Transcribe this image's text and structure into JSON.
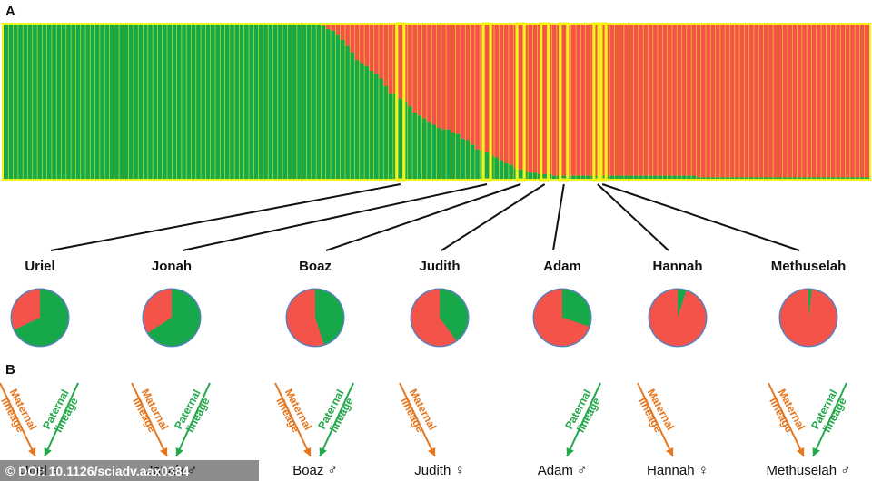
{
  "panel_a_label": "A",
  "panel_b_label": "B",
  "watermark": "© DOI: 10.1126/sciadv.aax0384",
  "colors": {
    "green": "#17a84a",
    "red": "#f4534a",
    "highlight": "#f2f21a",
    "orange": "#e6761e",
    "paternal": "#22a84a"
  },
  "lineage_text": {
    "maternal_1": "Maternal",
    "maternal_2": "lineage",
    "paternal_1": "Paternal",
    "paternal_2": "lineage"
  },
  "chart_data": {
    "type": "bar",
    "stacked": true,
    "ylim": [
      0,
      1
    ],
    "series_colors": [
      "green",
      "red"
    ],
    "green_fraction": [
      1,
      1,
      1,
      1,
      1,
      1,
      1,
      1,
      1,
      1,
      1,
      1,
      1,
      1,
      1,
      1,
      1,
      1,
      1,
      1,
      1,
      1,
      1,
      1,
      1,
      1,
      1,
      1,
      1,
      1,
      1,
      1,
      1,
      1,
      1,
      1,
      1,
      1,
      1,
      1,
      1,
      1,
      1,
      1,
      1,
      1,
      1,
      1,
      1,
      1,
      1,
      1,
      1,
      1,
      1,
      1,
      1,
      1,
      1,
      1,
      1,
      1,
      1,
      1,
      1,
      1,
      0.99,
      0.97,
      0.96,
      0.93,
      0.9,
      0.86,
      0.82,
      0.77,
      0.75,
      0.73,
      0.7,
      0.68,
      0.65,
      0.6,
      0.55,
      0.55,
      0.52,
      0.5,
      0.47,
      0.43,
      0.41,
      0.39,
      0.37,
      0.35,
      0.33,
      0.32,
      0.32,
      0.3,
      0.29,
      0.26,
      0.25,
      0.22,
      0.19,
      0.18,
      0.17,
      0.15,
      0.14,
      0.12,
      0.1,
      0.09,
      0.07,
      0.06,
      0.05,
      0.04,
      0.04,
      0.03,
      0.03,
      0.03,
      0.02,
      0.02,
      0.02,
      0.02,
      0.02,
      0.02,
      0.02,
      0.02,
      0.02,
      0.02,
      0.02,
      0.02,
      0.02,
      0.02,
      0.02,
      0.02,
      0.02,
      0.02,
      0.02,
      0.02,
      0.02,
      0.02,
      0.02,
      0.02,
      0.02,
      0.02,
      0.02,
      0.02,
      0.02,
      0.02,
      0.01,
      0.01,
      0.01,
      0.01,
      0.01,
      0.01,
      0.01,
      0.01,
      0.01,
      0.01,
      0.01,
      0.01,
      0.01,
      0.01,
      0.01,
      0.01,
      0.01,
      0.01,
      0.01,
      0.01,
      0.01,
      0.01,
      0.01,
      0.01,
      0.01,
      0.01,
      0.01,
      0.01,
      0.01,
      0.01,
      0.01,
      0.01,
      0.01,
      0.01,
      0.01,
      0.01
    ],
    "highlighted_bars": [
      82,
      100,
      107,
      112,
      116,
      123,
      124
    ],
    "individuals": [
      {
        "name": "Uriel",
        "sex": "♂",
        "green": 0.68,
        "red": 0.32,
        "maternal": true,
        "paternal": true
      },
      {
        "name": "Jonah",
        "sex": "♂",
        "green": 0.66,
        "red": 0.34,
        "maternal": true,
        "paternal": true
      },
      {
        "name": "Boaz",
        "sex": "♂",
        "green": 0.45,
        "red": 0.55,
        "maternal": true,
        "paternal": true
      },
      {
        "name": "Judith",
        "sex": "♀",
        "green": 0.4,
        "red": 0.6,
        "maternal": true,
        "paternal": false
      },
      {
        "name": "Adam",
        "sex": "♂",
        "green": 0.3,
        "red": 0.7,
        "maternal": false,
        "paternal": true
      },
      {
        "name": "Hannah",
        "sex": "♀",
        "green": 0.05,
        "red": 0.95,
        "maternal": true,
        "paternal": false
      },
      {
        "name": "Methuselah",
        "sex": "♂",
        "green": 0.02,
        "red": 0.98,
        "maternal": true,
        "paternal": true
      }
    ]
  }
}
